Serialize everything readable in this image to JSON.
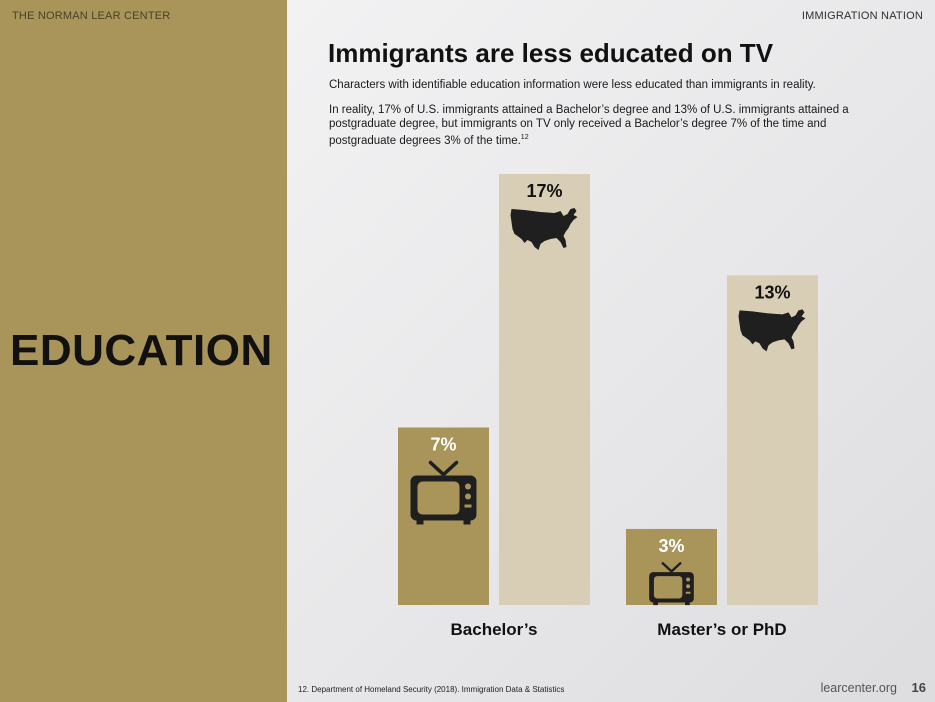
{
  "header": {
    "left": "THE NORMAN LEAR CENTER",
    "right": "IMMIGRATION NATION"
  },
  "section_title": "EDUCATION",
  "title": "Immigrants are less educated on TV",
  "subtitle": "Characters with identifiable education information were less educated than immigrants in reality.",
  "paragraph": {
    "text": "In reality, 17% of U.S. immigrants attained a Bachelor’s degree and 13% of U.S. immigrants attained a postgraduate degree, but immigrants on TV only received a Bachelor’s degree 7% of the time and postgraduate degrees 3% of the time.",
    "footnote_ref": "12"
  },
  "colors": {
    "tv": "#a99459",
    "reality": "#d8ceb6",
    "icon": "#1f1f1f",
    "label_tv": "#ffffff",
    "label_reality": "#111111"
  },
  "chart_data": {
    "type": "bar",
    "categories": [
      "Bachelor’s",
      "Master’s or PhD"
    ],
    "series": [
      {
        "icon": "tv-icon",
        "values": [
          7,
          3
        ],
        "labels": [
          "7%",
          "3%"
        ]
      },
      {
        "icon": "us-map-icon",
        "values": [
          17,
          13
        ],
        "labels": [
          "17%",
          "13%"
        ]
      }
    ],
    "ylim": [
      0,
      17
    ],
    "grid": false,
    "legend": "none",
    "title": "",
    "xlabel": "",
    "ylabel": ""
  },
  "footer": {
    "footnote": "12. Department of Homeland Security (2018). Immigration Data & Statistics",
    "site": "learcenter.org",
    "page": "16"
  }
}
